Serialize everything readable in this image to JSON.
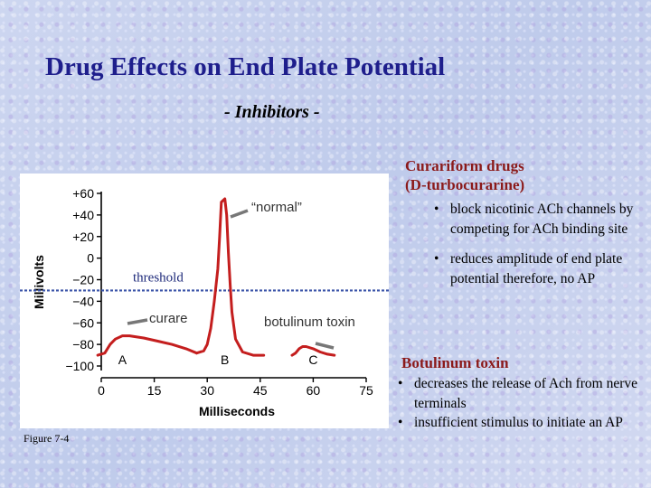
{
  "title": "Drug Effects on End Plate Potential",
  "subtitle": "- Inhibitors -",
  "figure_caption": "Figure 7-4",
  "curariform": {
    "heading_line1": "Curariform drugs",
    "heading_line2": "(D-turbocurarine)",
    "bullets": [
      "block nicotinic ACh channels by competing for ACh binding site",
      "reduces amplitude of end plate potential therefore, no AP"
    ]
  },
  "botulinum": {
    "heading": "Botulinum toxin",
    "bullets": [
      "decreases the release of Ach from nerve terminals",
      "insufficient stimulus to initiate an AP"
    ]
  },
  "bullet_char": "•",
  "chart_data": {
    "type": "line",
    "xlabel": "Milliseconds",
    "ylabel": "Millivolts",
    "xlim": [
      0,
      75
    ],
    "ylim": [
      -100,
      60
    ],
    "xticks": [
      "0",
      "15",
      "30",
      "45",
      "60",
      "75"
    ],
    "yticks": [
      "+60",
      "+40",
      "+20",
      "0",
      "−20",
      "−40",
      "−60",
      "−80",
      "−100"
    ],
    "threshold": -30,
    "threshold_label": "threshold",
    "curves": [
      {
        "label": "A",
        "x": [
          -1,
          1,
          2.5,
          4,
          6,
          8,
          12,
          16,
          20,
          24,
          27
        ],
        "y": [
          -90,
          -88,
          -80,
          -75,
          -72,
          -72,
          -74,
          -77,
          -80,
          -84,
          -88
        ]
      },
      {
        "label": "B",
        "x": [
          27,
          29,
          30,
          31,
          32,
          33,
          33.5,
          34,
          35,
          35.5,
          36,
          36.5,
          37,
          38,
          40,
          43,
          46
        ],
        "y": [
          -88,
          -86,
          -80,
          -65,
          -40,
          -10,
          20,
          52,
          55,
          40,
          5,
          -25,
          -50,
          -75,
          -87,
          -90,
          -90
        ]
      },
      {
        "label": "C",
        "x": [
          54,
          55,
          56,
          57,
          58,
          60,
          62,
          64,
          66
        ],
        "y": [
          -90,
          -88,
          -84,
          -82,
          -82,
          -84,
          -87,
          -89,
          -90
        ]
      }
    ],
    "curve_labels": [
      {
        "text": "A",
        "x": 6,
        "y": -94
      },
      {
        "text": "B",
        "x": 35,
        "y": -94
      },
      {
        "text": "C",
        "x": 60,
        "y": -94
      }
    ],
    "annotations": [
      {
        "text": "“normal”"
      },
      {
        "text": "curare"
      },
      {
        "text": "botulinum toxin"
      }
    ],
    "colors": {
      "curve": "#c41e1e",
      "threshold": "#3a53a8",
      "axis": "#000000",
      "pointer": "#777777"
    }
  }
}
